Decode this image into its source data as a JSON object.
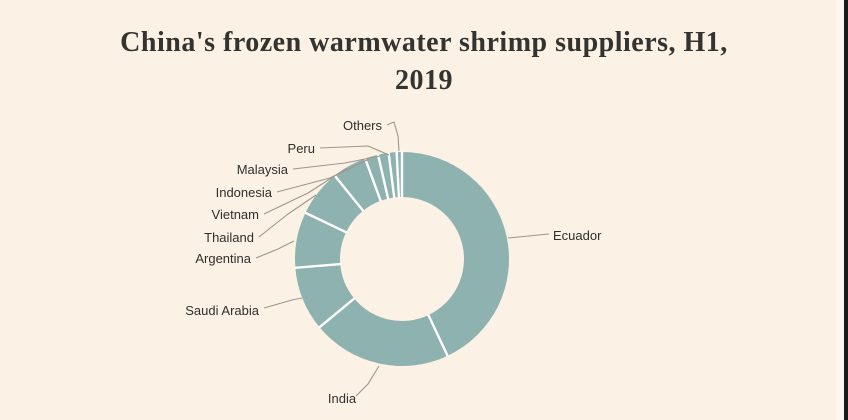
{
  "title": {
    "line1": "China's frozen warmwater shrimp suppliers, H1,",
    "line2": "2019"
  },
  "chart_data": {
    "type": "pie",
    "subtype": "donut",
    "title": "China's frozen warmwater shrimp suppliers, H1, 2019",
    "value_unit": "share of total, % (estimated from arc angles; no numeric labels shown)",
    "start_angle_deg": 0,
    "direction": "clockwise",
    "legend": "none (labels connected by leader lines)",
    "segments": [
      {
        "label": "Ecuador",
        "value": 43.0
      },
      {
        "label": "India",
        "value": 21.0
      },
      {
        "label": "Saudi Arabia",
        "value": 9.7
      },
      {
        "label": "Argentina",
        "value": 8.4
      },
      {
        "label": "Thailand",
        "value": 7.1
      },
      {
        "label": "Vietnam",
        "value": 5.2
      },
      {
        "label": "Indonesia",
        "value": 2.0
      },
      {
        "label": "Malaysia",
        "value": 1.6
      },
      {
        "label": "Peru",
        "value": 1.2
      },
      {
        "label": "Others",
        "value": 0.8
      }
    ],
    "colors": {
      "slice": "#8DB2AF",
      "separator": "#FFFFFF",
      "leader_line": "#9E968A",
      "label_text": "#2F2F2F",
      "title_text": "#33332F",
      "background": "#FCF1E5"
    }
  }
}
